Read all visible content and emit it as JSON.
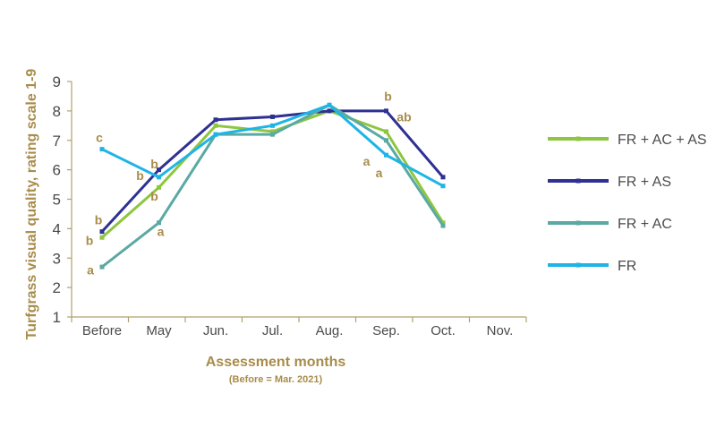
{
  "chart_data": {
    "type": "line",
    "title": "",
    "xlabel": "Assessment months",
    "xlabel_sub": "(Before = Mar. 2021)",
    "ylabel": "Turfgrass visual quality, rating scale 1-9",
    "ylim": [
      1,
      9
    ],
    "yticks": [
      1,
      2,
      3,
      4,
      5,
      6,
      7,
      8,
      9
    ],
    "categories": [
      "Before",
      "May",
      "Jun.",
      "Jul.",
      "Aug.",
      "Sep.",
      "Oct.",
      "Nov."
    ],
    "legend_position": "right",
    "series": [
      {
        "name": "FR + AC + AS",
        "color": "#8dc63f",
        "values": [
          3.7,
          5.4,
          7.5,
          7.3,
          8.0,
          7.3,
          4.2,
          null
        ]
      },
      {
        "name": "FR + AS",
        "color": "#2e3192",
        "values": [
          3.9,
          6.0,
          7.7,
          7.8,
          8.0,
          8.0,
          5.75,
          null
        ]
      },
      {
        "name": "FR + AC",
        "color": "#5aa9a3",
        "values": [
          2.7,
          4.2,
          7.2,
          7.2,
          8.2,
          7.0,
          4.1,
          null
        ]
      },
      {
        "name": "FR",
        "color": "#1eb4e6",
        "values": [
          6.7,
          5.75,
          7.2,
          7.5,
          8.2,
          6.5,
          5.45,
          null
        ]
      }
    ],
    "annotations": [
      {
        "text": "c",
        "x": "Before",
        "y": 7.1
      },
      {
        "text": "b",
        "x": "Before",
        "y": 4.3
      },
      {
        "text": "b",
        "x": "Before",
        "y": 3.6
      },
      {
        "text": "a",
        "x": "Before",
        "y": 2.6
      },
      {
        "text": "b",
        "x": "May",
        "y": 6.2
      },
      {
        "text": "b",
        "x": "May",
        "y": 5.8
      },
      {
        "text": "b",
        "x": "May",
        "y": 5.1
      },
      {
        "text": "a",
        "x": "May",
        "y": 3.9
      },
      {
        "text": "b",
        "x": "Sep.",
        "y": 8.5
      },
      {
        "text": "ab",
        "x": "Sep.",
        "y": 7.8
      },
      {
        "text": "a",
        "x": "Sep.",
        "y": 6.3
      },
      {
        "text": "a",
        "x": "Sep.",
        "y": 5.9
      }
    ]
  }
}
